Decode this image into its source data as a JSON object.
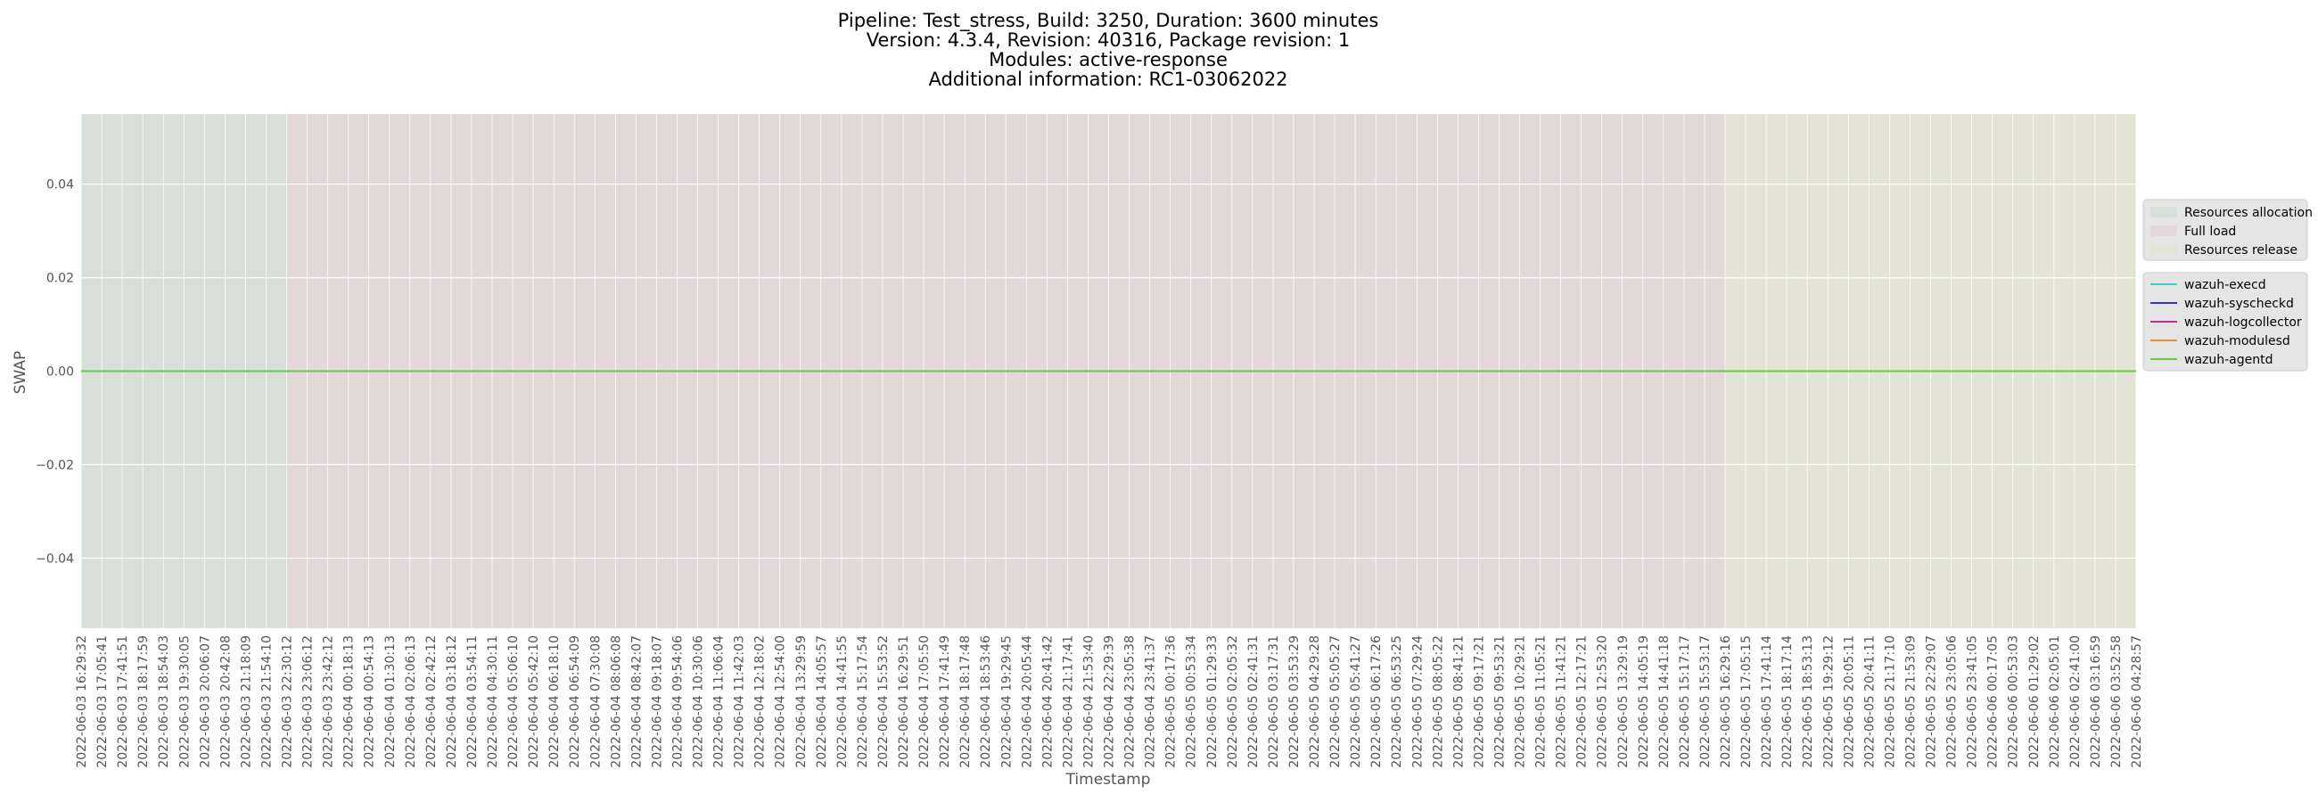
{
  "chart_data": {
    "type": "line",
    "title": [
      "Pipeline: Test_stress, Build: 3250, Duration: 3600 minutes",
      "Version: 4.3.4, Revision: 40316, Package revision: 1",
      "Modules: active-response",
      "Additional information: RC1-03062022"
    ],
    "x_label": "Timestamp",
    "y_label": "SWAP",
    "categories": [
      "2022-06-03 16:29:32",
      "2022-06-03 17:05:41",
      "2022-06-03 17:41:51",
      "2022-06-03 18:17:59",
      "2022-06-03 18:54:03",
      "2022-06-03 19:30:05",
      "2022-06-03 20:06:07",
      "2022-06-03 20:42:08",
      "2022-06-03 21:18:09",
      "2022-06-03 21:54:10",
      "2022-06-03 22:30:12",
      "2022-06-03 23:06:12",
      "2022-06-03 23:42:12",
      "2022-06-04 00:18:13",
      "2022-06-04 00:54:13",
      "2022-06-04 01:30:13",
      "2022-06-04 02:06:13",
      "2022-06-04 02:42:12",
      "2022-06-04 03:18:12",
      "2022-06-04 03:54:11",
      "2022-06-04 04:30:11",
      "2022-06-04 05:06:10",
      "2022-06-04 05:42:10",
      "2022-06-04 06:18:10",
      "2022-06-04 06:54:09",
      "2022-06-04 07:30:08",
      "2022-06-04 08:06:08",
      "2022-06-04 08:42:07",
      "2022-06-04 09:18:07",
      "2022-06-04 09:54:06",
      "2022-06-04 10:30:06",
      "2022-06-04 11:06:04",
      "2022-06-04 11:42:03",
      "2022-06-04 12:18:02",
      "2022-06-04 12:54:00",
      "2022-06-04 13:29:59",
      "2022-06-04 14:05:57",
      "2022-06-04 14:41:55",
      "2022-06-04 15:17:54",
      "2022-06-04 15:53:52",
      "2022-06-04 16:29:51",
      "2022-06-04 17:05:50",
      "2022-06-04 17:41:49",
      "2022-06-04 18:17:48",
      "2022-06-04 18:53:46",
      "2022-06-04 19:29:45",
      "2022-06-04 20:05:44",
      "2022-06-04 20:41:42",
      "2022-06-04 21:17:41",
      "2022-06-04 21:53:40",
      "2022-06-04 22:29:39",
      "2022-06-04 23:05:38",
      "2022-06-04 23:41:37",
      "2022-06-05 00:17:36",
      "2022-06-05 00:53:34",
      "2022-06-05 01:29:33",
      "2022-06-05 02:05:32",
      "2022-06-05 02:41:31",
      "2022-06-05 03:17:31",
      "2022-06-05 03:53:29",
      "2022-06-05 04:29:28",
      "2022-06-05 05:05:27",
      "2022-06-05 05:41:27",
      "2022-06-05 06:17:26",
      "2022-06-05 06:53:25",
      "2022-06-05 07:29:24",
      "2022-06-05 08:05:22",
      "2022-06-05 08:41:21",
      "2022-06-05 09:17:21",
      "2022-06-05 09:53:21",
      "2022-06-05 10:29:21",
      "2022-06-05 11:05:21",
      "2022-06-05 11:41:21",
      "2022-06-05 12:17:21",
      "2022-06-05 12:53:20",
      "2022-06-05 13:29:19",
      "2022-06-05 14:05:19",
      "2022-06-05 14:41:18",
      "2022-06-05 15:17:17",
      "2022-06-05 15:53:17",
      "2022-06-05 16:29:16",
      "2022-06-05 17:05:15",
      "2022-06-05 17:41:14",
      "2022-06-05 18:17:14",
      "2022-06-05 18:53:13",
      "2022-06-05 19:29:12",
      "2022-06-05 20:05:11",
      "2022-06-05 20:41:11",
      "2022-06-05 21:17:10",
      "2022-06-05 21:53:09",
      "2022-06-05 22:29:07",
      "2022-06-05 23:05:06",
      "2022-06-05 23:41:05",
      "2022-06-06 00:17:05",
      "2022-06-06 00:53:03",
      "2022-06-06 01:29:02",
      "2022-06-06 02:05:01",
      "2022-06-06 02:41:00",
      "2022-06-06 03:16:59",
      "2022-06-06 03:52:58",
      "2022-06-06 04:28:57"
    ],
    "phases": [
      {
        "name": "Resources allocation",
        "color": "#d6e0d8",
        "start": "2022-06-03 16:29:32",
        "end": "2022-06-03 22:30:12"
      },
      {
        "name": "Full load",
        "color": "#e3d7d9",
        "start": "2022-06-03 22:30:12",
        "end": "2022-06-05 16:29:16"
      },
      {
        "name": "Resources release",
        "color": "#e4e4d6",
        "start": "2022-06-05 16:29:16",
        "end": "2022-06-06 04:28:57"
      }
    ],
    "series": [
      {
        "name": "wazuh-execd",
        "color": "#40d0c8",
        "values": [
          0,
          0,
          0,
          0,
          0,
          0,
          0,
          0,
          0,
          0,
          0,
          0,
          0,
          0,
          0,
          0,
          0,
          0,
          0,
          0,
          0,
          0,
          0,
          0,
          0,
          0,
          0,
          0,
          0,
          0,
          0,
          0,
          0,
          0,
          0,
          0,
          0,
          0,
          0,
          0,
          0,
          0,
          0,
          0,
          0,
          0,
          0,
          0,
          0,
          0,
          0,
          0,
          0,
          0,
          0,
          0,
          0,
          0,
          0,
          0,
          0,
          0,
          0,
          0,
          0,
          0,
          0,
          0,
          0,
          0,
          0,
          0,
          0,
          0,
          0,
          0,
          0,
          0,
          0,
          0,
          0,
          0,
          0,
          0,
          0,
          0,
          0,
          0,
          0,
          0,
          0,
          0,
          0,
          0,
          0,
          0,
          0,
          0,
          0,
          0,
          0
        ]
      },
      {
        "name": "wazuh-syscheckd",
        "color": "#3a2ec8",
        "values": [
          0,
          0,
          0,
          0,
          0,
          0,
          0,
          0,
          0,
          0,
          0,
          0,
          0,
          0,
          0,
          0,
          0,
          0,
          0,
          0,
          0,
          0,
          0,
          0,
          0,
          0,
          0,
          0,
          0,
          0,
          0,
          0,
          0,
          0,
          0,
          0,
          0,
          0,
          0,
          0,
          0,
          0,
          0,
          0,
          0,
          0,
          0,
          0,
          0,
          0,
          0,
          0,
          0,
          0,
          0,
          0,
          0,
          0,
          0,
          0,
          0,
          0,
          0,
          0,
          0,
          0,
          0,
          0,
          0,
          0,
          0,
          0,
          0,
          0,
          0,
          0,
          0,
          0,
          0,
          0,
          0,
          0,
          0,
          0,
          0,
          0,
          0,
          0,
          0,
          0,
          0,
          0,
          0,
          0,
          0,
          0,
          0,
          0,
          0,
          0,
          0
        ]
      },
      {
        "name": "wazuh-logcollector",
        "color": "#c42d8f",
        "values": [
          0,
          0,
          0,
          0,
          0,
          0,
          0,
          0,
          0,
          0,
          0,
          0,
          0,
          0,
          0,
          0,
          0,
          0,
          0,
          0,
          0,
          0,
          0,
          0,
          0,
          0,
          0,
          0,
          0,
          0,
          0,
          0,
          0,
          0,
          0,
          0,
          0,
          0,
          0,
          0,
          0,
          0,
          0,
          0,
          0,
          0,
          0,
          0,
          0,
          0,
          0,
          0,
          0,
          0,
          0,
          0,
          0,
          0,
          0,
          0,
          0,
          0,
          0,
          0,
          0,
          0,
          0,
          0,
          0,
          0,
          0,
          0,
          0,
          0,
          0,
          0,
          0,
          0,
          0,
          0,
          0,
          0,
          0,
          0,
          0,
          0,
          0,
          0,
          0,
          0,
          0,
          0,
          0,
          0,
          0,
          0,
          0,
          0,
          0,
          0,
          0
        ]
      },
      {
        "name": "wazuh-modulesd",
        "color": "#e69138",
        "values": [
          0,
          0,
          0,
          0,
          0,
          0,
          0,
          0,
          0,
          0,
          0,
          0,
          0,
          0,
          0,
          0,
          0,
          0,
          0,
          0,
          0,
          0,
          0,
          0,
          0,
          0,
          0,
          0,
          0,
          0,
          0,
          0,
          0,
          0,
          0,
          0,
          0,
          0,
          0,
          0,
          0,
          0,
          0,
          0,
          0,
          0,
          0,
          0,
          0,
          0,
          0,
          0,
          0,
          0,
          0,
          0,
          0,
          0,
          0,
          0,
          0,
          0,
          0,
          0,
          0,
          0,
          0,
          0,
          0,
          0,
          0,
          0,
          0,
          0,
          0,
          0,
          0,
          0,
          0,
          0,
          0,
          0,
          0,
          0,
          0,
          0,
          0,
          0,
          0,
          0,
          0,
          0,
          0,
          0,
          0,
          0,
          0,
          0,
          0,
          0,
          0
        ]
      },
      {
        "name": "wazuh-agentd",
        "color": "#66cc44",
        "values": [
          0,
          0,
          0,
          0,
          0,
          0,
          0,
          0,
          0,
          0,
          0,
          0,
          0,
          0,
          0,
          0,
          0,
          0,
          0,
          0,
          0,
          0,
          0,
          0,
          0,
          0,
          0,
          0,
          0,
          0,
          0,
          0,
          0,
          0,
          0,
          0,
          0,
          0,
          0,
          0,
          0,
          0,
          0,
          0,
          0,
          0,
          0,
          0,
          0,
          0,
          0,
          0,
          0,
          0,
          0,
          0,
          0,
          0,
          0,
          0,
          0,
          0,
          0,
          0,
          0,
          0,
          0,
          0,
          0,
          0,
          0,
          0,
          0,
          0,
          0,
          0,
          0,
          0,
          0,
          0,
          0,
          0,
          0,
          0,
          0,
          0,
          0,
          0,
          0,
          0,
          0,
          0,
          0,
          0,
          0,
          0,
          0,
          0,
          0,
          0,
          0
        ]
      }
    ],
    "ylim": [
      -0.055,
      0.055
    ],
    "yticks": [
      {
        "value": -0.04,
        "label": "−0.04"
      },
      {
        "value": -0.02,
        "label": "−0.02"
      },
      {
        "value": 0,
        "label": "0.00"
      },
      0.02,
      0.04
    ],
    "grid": true
  }
}
